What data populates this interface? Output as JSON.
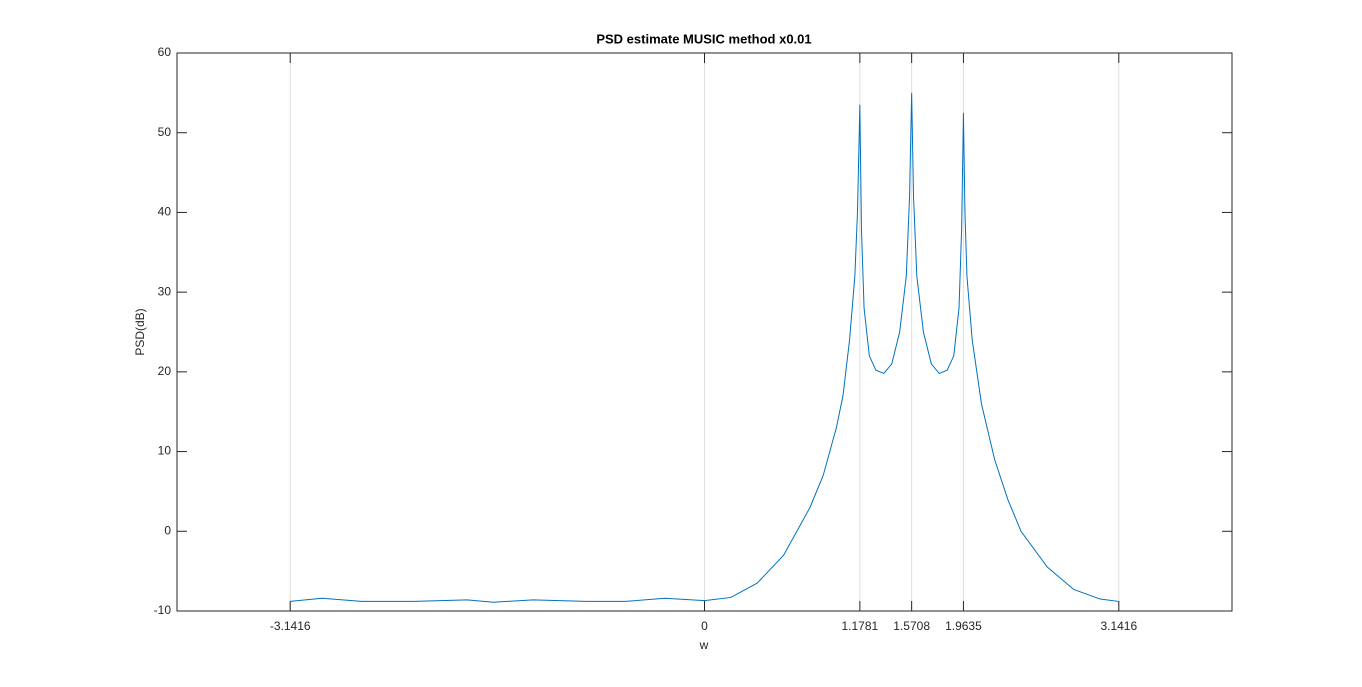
{
  "chart_data": {
    "type": "line",
    "title": "PSD estimate MUSIC method x0.01",
    "x_label": "w",
    "y_label": "PSD(dB)",
    "xlim": [
      -4,
      4
    ],
    "ylim": [
      -10,
      60
    ],
    "xticks": [
      -3.1416,
      0,
      1.1781,
      1.5708,
      1.9635,
      3.1416
    ],
    "yticks": [
      -10,
      0,
      10,
      20,
      30,
      40,
      50,
      60
    ],
    "grid": "x",
    "series": [
      {
        "color": "#0072bd",
        "x": [
          -3.1416,
          -2.9,
          -2.6,
          -2.2,
          -1.8,
          -1.6,
          -1.3,
          -0.9,
          -0.6,
          -0.3,
          0,
          0.2,
          0.4,
          0.6,
          0.8,
          0.9,
          1.0,
          1.05,
          1.1,
          1.14,
          1.16,
          1.1781,
          1.19,
          1.21,
          1.25,
          1.3,
          1.36,
          1.42,
          1.48,
          1.53,
          1.555,
          1.5708,
          1.585,
          1.61,
          1.66,
          1.72,
          1.78,
          1.84,
          1.89,
          1.93,
          1.95,
          1.9635,
          1.975,
          1.99,
          2.03,
          2.1,
          2.2,
          2.3,
          2.4,
          2.6,
          2.8,
          3.0,
          3.1416
        ],
        "values": [
          -8.8,
          -8.4,
          -8.8,
          -8.8,
          -8.6,
          -8.9,
          -8.6,
          -8.8,
          -8.8,
          -8.4,
          -8.7,
          -8.3,
          -6.5,
          -3,
          3,
          7,
          13,
          17,
          24,
          32,
          40,
          53.5,
          38,
          28,
          22,
          20.2,
          19.8,
          21,
          25,
          32,
          42,
          55,
          42,
          32,
          25,
          21,
          19.8,
          20.2,
          22,
          28,
          38,
          52.5,
          40,
          32,
          24,
          16,
          9,
          4,
          0,
          -4.5,
          -7.3,
          -8.5,
          -8.8
        ]
      }
    ]
  }
}
